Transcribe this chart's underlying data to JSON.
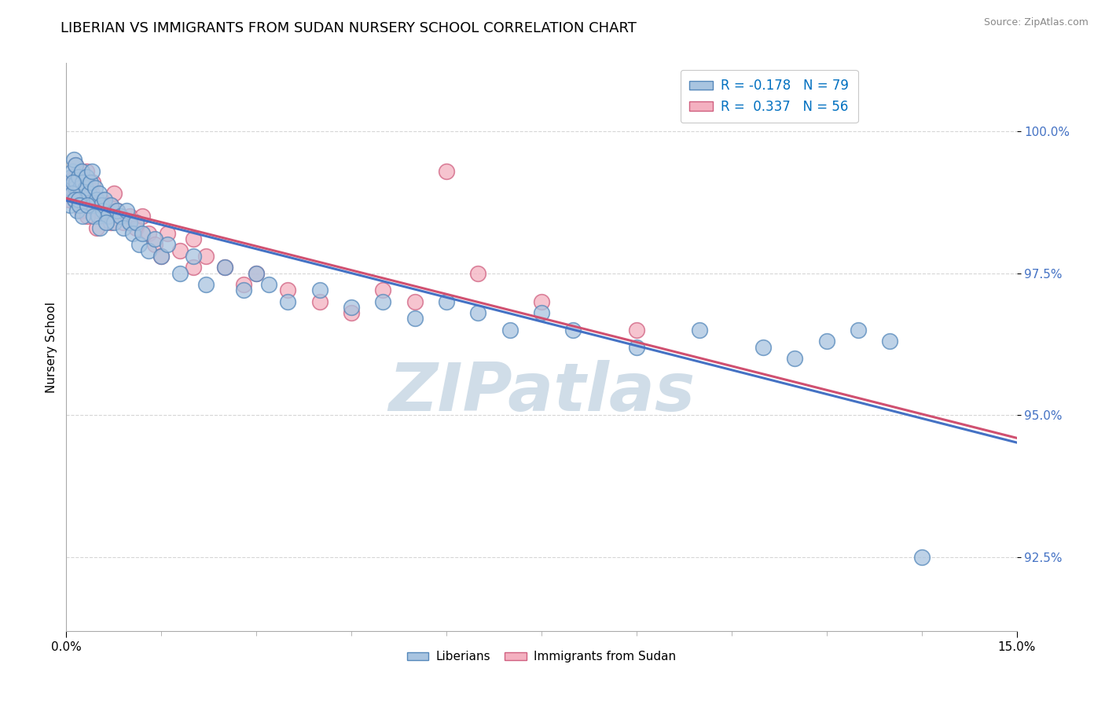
{
  "title": "LIBERIAN VS IMMIGRANTS FROM SUDAN NURSERY SCHOOL CORRELATION CHART",
  "source": "Source: ZipAtlas.com",
  "ylabel": "Nursery School",
  "y_ticks": [
    92.5,
    95.0,
    97.5,
    100.0
  ],
  "y_tick_labels": [
    "92.5%",
    "95.0%",
    "97.5%",
    "100.0%"
  ],
  "x_min": 0.0,
  "x_max": 15.0,
  "y_min": 91.2,
  "y_max": 101.2,
  "liberians_R": -0.178,
  "liberians_N": 79,
  "sudan_R": 0.337,
  "sudan_N": 56,
  "liberian_color": "#a8c4e0",
  "liberian_edge_color": "#5588bb",
  "liberian_line_color": "#4472c4",
  "sudan_color": "#f4b0c0",
  "sudan_edge_color": "#d06080",
  "sudan_line_color": "#d05070",
  "watermark_color": "#d0dde8",
  "background_color": "#ffffff",
  "title_fontsize": 13,
  "liberian_x": [
    0.05,
    0.08,
    0.1,
    0.12,
    0.14,
    0.15,
    0.16,
    0.18,
    0.2,
    0.22,
    0.24,
    0.26,
    0.28,
    0.3,
    0.32,
    0.35,
    0.38,
    0.4,
    0.42,
    0.45,
    0.48,
    0.5,
    0.52,
    0.55,
    0.58,
    0.6,
    0.65,
    0.7,
    0.75,
    0.8,
    0.85,
    0.9,
    0.95,
    1.0,
    1.05,
    1.1,
    1.15,
    1.2,
    1.3,
    1.4,
    1.5,
    1.6,
    1.8,
    2.0,
    2.2,
    2.5,
    2.8,
    3.0,
    3.2,
    3.5,
    4.0,
    4.5,
    5.0,
    5.5,
    6.0,
    6.5,
    7.0,
    7.5,
    8.0,
    9.0,
    10.0,
    11.0,
    11.5,
    12.0,
    12.5,
    13.0,
    0.06,
    0.09,
    0.11,
    0.13,
    0.17,
    0.19,
    0.21,
    0.25,
    0.33,
    0.43,
    0.53,
    0.63,
    13.5
  ],
  "liberian_y": [
    99.0,
    99.2,
    99.3,
    99.5,
    99.0,
    99.4,
    99.1,
    98.9,
    99.2,
    99.0,
    99.3,
    99.1,
    98.8,
    99.0,
    99.2,
    98.9,
    99.1,
    99.3,
    98.7,
    99.0,
    98.8,
    98.5,
    98.9,
    98.7,
    98.6,
    98.8,
    98.5,
    98.7,
    98.4,
    98.6,
    98.5,
    98.3,
    98.6,
    98.4,
    98.2,
    98.4,
    98.0,
    98.2,
    97.9,
    98.1,
    97.8,
    98.0,
    97.5,
    97.8,
    97.3,
    97.6,
    97.2,
    97.5,
    97.3,
    97.0,
    97.2,
    96.9,
    97.0,
    96.7,
    97.0,
    96.8,
    96.5,
    96.8,
    96.5,
    96.2,
    96.5,
    96.2,
    96.0,
    96.3,
    96.5,
    96.3,
    98.7,
    98.9,
    99.1,
    98.8,
    98.6,
    98.8,
    98.7,
    98.5,
    98.7,
    98.5,
    98.3,
    98.4,
    92.5
  ],
  "sudan_x": [
    0.05,
    0.08,
    0.1,
    0.12,
    0.15,
    0.18,
    0.2,
    0.22,
    0.25,
    0.28,
    0.3,
    0.32,
    0.35,
    0.38,
    0.4,
    0.42,
    0.45,
    0.5,
    0.55,
    0.6,
    0.65,
    0.7,
    0.75,
    0.8,
    0.9,
    1.0,
    1.1,
    1.2,
    1.3,
    1.4,
    1.6,
    1.8,
    2.0,
    2.2,
    2.5,
    2.8,
    3.0,
    3.5,
    4.0,
    4.5,
    5.0,
    5.5,
    6.0,
    6.5,
    7.5,
    9.0,
    0.07,
    0.09,
    0.13,
    0.16,
    0.24,
    0.33,
    0.48,
    0.7,
    1.5,
    2.0
  ],
  "sudan_y": [
    98.8,
    98.9,
    99.0,
    99.2,
    99.4,
    99.1,
    98.9,
    99.2,
    99.0,
    98.8,
    99.1,
    99.3,
    99.0,
    98.7,
    98.9,
    99.1,
    98.8,
    98.6,
    98.8,
    98.7,
    98.5,
    98.7,
    98.9,
    98.6,
    98.4,
    98.5,
    98.3,
    98.5,
    98.2,
    98.0,
    98.2,
    97.9,
    98.1,
    97.8,
    97.6,
    97.3,
    97.5,
    97.2,
    97.0,
    96.8,
    97.2,
    97.0,
    99.3,
    97.5,
    97.0,
    96.5,
    98.9,
    99.0,
    98.8,
    99.2,
    98.6,
    98.5,
    98.3,
    98.4,
    97.8,
    97.6
  ]
}
